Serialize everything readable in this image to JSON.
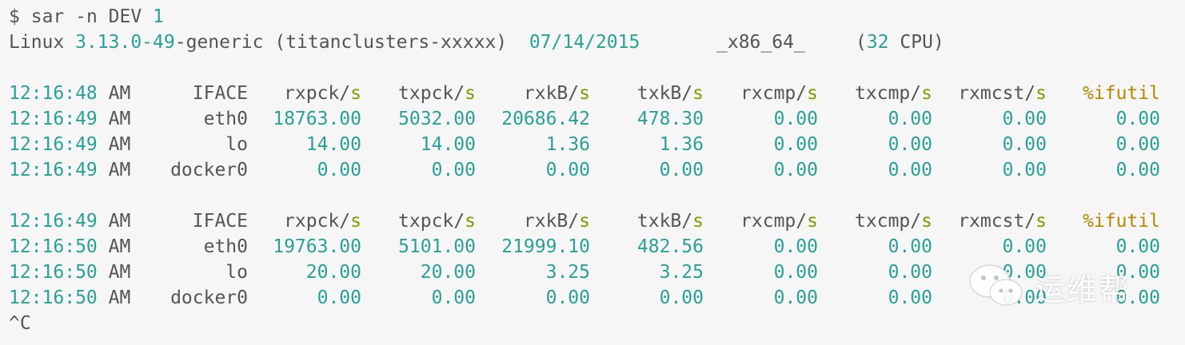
{
  "prompt": {
    "symbol": "$",
    "command": "sar -n DEV ",
    "arg": "1"
  },
  "sysinfo": {
    "os": "Linux ",
    "kernel_ver": "3.13.0-49",
    "kernel_suffix": "-generic (titanclusters-xxxxx)  ",
    "date": "07/14/2015",
    "arch": "_x86_64_",
    "cpu_open": "(",
    "cpu_count": "32",
    "cpu_close": " CPU)"
  },
  "blocks": [
    {
      "header": {
        "time": "12:16:48 AM",
        "iface": "IFACE",
        "cols": [
          {
            "base": "rxpck/",
            "s": "s"
          },
          {
            "base": "txpck/",
            "s": "s"
          },
          {
            "base": "rxkB/",
            "s": "s"
          },
          {
            "base": "txkB/",
            "s": "s"
          },
          {
            "base": "rxcmp/",
            "s": "s"
          },
          {
            "base": "txcmp/",
            "s": "s"
          },
          {
            "base": "rxmcst/",
            "s": "s"
          }
        ],
        "last": "%ifutil"
      },
      "rows": [
        {
          "time": "12:16:49 AM",
          "iface": "eth0",
          "values": [
            "18763.00",
            "5032.00",
            "20686.42",
            "478.30",
            "0.00",
            "0.00",
            "0.00",
            "0.00"
          ]
        },
        {
          "time": "12:16:49 AM",
          "iface": "lo",
          "values": [
            "14.00",
            "14.00",
            "1.36",
            "1.36",
            "0.00",
            "0.00",
            "0.00",
            "0.00"
          ]
        },
        {
          "time": "12:16:49 AM",
          "iface": "docker0",
          "values": [
            "0.00",
            "0.00",
            "0.00",
            "0.00",
            "0.00",
            "0.00",
            "0.00",
            "0.00"
          ]
        }
      ]
    },
    {
      "header": {
        "time": "12:16:49 AM",
        "iface": "IFACE",
        "cols": [
          {
            "base": "rxpck/",
            "s": "s"
          },
          {
            "base": "txpck/",
            "s": "s"
          },
          {
            "base": "rxkB/",
            "s": "s"
          },
          {
            "base": "txkB/",
            "s": "s"
          },
          {
            "base": "rxcmp/",
            "s": "s"
          },
          {
            "base": "txcmp/",
            "s": "s"
          },
          {
            "base": "rxmcst/",
            "s": "s"
          }
        ],
        "last": "%ifutil"
      },
      "rows": [
        {
          "time": "12:16:50 AM",
          "iface": "eth0",
          "values": [
            "19763.00",
            "5101.00",
            "21999.10",
            "482.56",
            "0.00",
            "0.00",
            "0.00",
            "0.00"
          ]
        },
        {
          "time": "12:16:50 AM",
          "iface": "lo",
          "values": [
            "20.00",
            "20.00",
            "3.25",
            "3.25",
            "0.00",
            "0.00",
            "0.00",
            "0.00"
          ]
        },
        {
          "time": "12:16:50 AM",
          "iface": "docker0",
          "values": [
            "0.00",
            "0.00",
            "0.00",
            "0.00",
            "0.00",
            "0.00",
            "0.00",
            "0.00"
          ]
        }
      ]
    }
  ],
  "interrupt": "^C",
  "watermark": {
    "icon": "wechat-icon",
    "text": "运维帮"
  },
  "colors": {
    "background": "#f6f6f6",
    "text": "#555555",
    "teal": "#2aa198",
    "olive": "#859900",
    "gold": "#b58900"
  }
}
